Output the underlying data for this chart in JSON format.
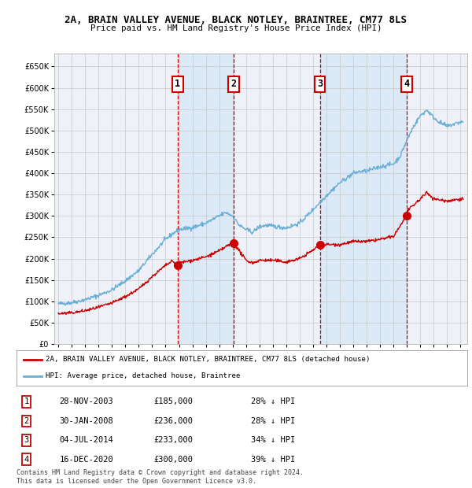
{
  "title": "2A, BRAIN VALLEY AVENUE, BLACK NOTLEY, BRAINTREE, CM77 8LS",
  "subtitle": "Price paid vs. HM Land Registry's House Price Index (HPI)",
  "ylim": [
    0,
    680000
  ],
  "ytick_values": [
    0,
    50000,
    100000,
    150000,
    200000,
    250000,
    300000,
    350000,
    400000,
    450000,
    500000,
    550000,
    600000,
    650000
  ],
  "sale_date_nums": [
    2003.9068,
    2008.0767,
    2014.5041,
    2020.9616
  ],
  "sale_prices": [
    185000,
    236000,
    233000,
    300000
  ],
  "sale_labels": [
    "1",
    "2",
    "3",
    "4"
  ],
  "sale_color": "#cc0000",
  "hpi_color": "#6baed6",
  "hpi_shading": "#d0e4f5",
  "grid_color": "#c8c8c8",
  "background_color": "#ffffff",
  "plot_bg_color": "#eef2f8",
  "legend_entries": [
    "2A, BRAIN VALLEY AVENUE, BLACK NOTLEY, BRAINTREE, CM77 8LS (detached house)",
    "HPI: Average price, detached house, Braintree"
  ],
  "table_rows": [
    [
      "1",
      "28-NOV-2003",
      "£185,000",
      "28% ↓ HPI"
    ],
    [
      "2",
      "30-JAN-2008",
      "£236,000",
      "28% ↓ HPI"
    ],
    [
      "3",
      "04-JUL-2014",
      "£233,000",
      "34% ↓ HPI"
    ],
    [
      "4",
      "16-DEC-2020",
      "£300,000",
      "39% ↓ HPI"
    ]
  ],
  "footnote": "Contains HM Land Registry data © Crown copyright and database right 2024.\nThis data is licensed under the Open Government Licence v3.0.",
  "xlim": [
    1994.7,
    2025.5
  ],
  "xtick_years": [
    1995,
    1996,
    1997,
    1998,
    1999,
    2000,
    2001,
    2002,
    2003,
    2004,
    2005,
    2006,
    2007,
    2008,
    2009,
    2010,
    2011,
    2012,
    2013,
    2014,
    2015,
    2016,
    2017,
    2018,
    2019,
    2020,
    2021,
    2022,
    2023,
    2024,
    2025
  ],
  "hpi_anchors_x": [
    1995.0,
    1996.0,
    1997.0,
    1998.0,
    1999.0,
    2000.0,
    2001.0,
    2002.0,
    2003.0,
    2003.5,
    2004.0,
    2005.0,
    2006.0,
    2007.0,
    2007.5,
    2008.0,
    2008.5,
    2009.0,
    2009.5,
    2010.0,
    2010.5,
    2011.0,
    2012.0,
    2013.0,
    2014.0,
    2015.0,
    2016.0,
    2017.0,
    2017.5,
    2018.0,
    2019.0,
    2020.0,
    2020.5,
    2021.0,
    2021.5,
    2022.0,
    2022.5,
    2023.0,
    2023.5,
    2024.0,
    2024.5,
    2025.0
  ],
  "hpi_anchors_y": [
    94000,
    97000,
    104000,
    114000,
    127000,
    148000,
    172000,
    210000,
    245000,
    258000,
    268000,
    273000,
    283000,
    300000,
    308000,
    300000,
    278000,
    268000,
    262000,
    275000,
    278000,
    276000,
    272000,
    283000,
    315000,
    348000,
    378000,
    400000,
    404000,
    405000,
    415000,
    422000,
    440000,
    478000,
    510000,
    535000,
    548000,
    530000,
    518000,
    510000,
    515000,
    520000
  ],
  "prop_anchors_x": [
    1995.0,
    1996.0,
    1997.0,
    1998.0,
    1999.0,
    2000.0,
    2001.0,
    2002.0,
    2003.0,
    2003.5,
    2003.9068,
    2004.0,
    2005.0,
    2006.0,
    2007.0,
    2007.5,
    2008.0,
    2008.0767,
    2009.0,
    2009.5,
    2010.0,
    2011.0,
    2012.0,
    2013.0,
    2014.0,
    2014.5041,
    2015.0,
    2016.0,
    2017.0,
    2018.0,
    2019.0,
    2020.0,
    2020.9616,
    2021.0,
    2022.0,
    2022.5,
    2023.0,
    2024.0,
    2025.0
  ],
  "prop_anchors_y": [
    71000,
    73000,
    78000,
    86000,
    96000,
    111000,
    129000,
    158000,
    184000,
    194000,
    185000,
    190000,
    196000,
    204000,
    218000,
    228000,
    236000,
    236000,
    196000,
    190000,
    196000,
    196000,
    192000,
    200000,
    220000,
    233000,
    233000,
    233000,
    240000,
    240000,
    245000,
    252000,
    300000,
    310000,
    340000,
    355000,
    340000,
    335000,
    340000
  ]
}
